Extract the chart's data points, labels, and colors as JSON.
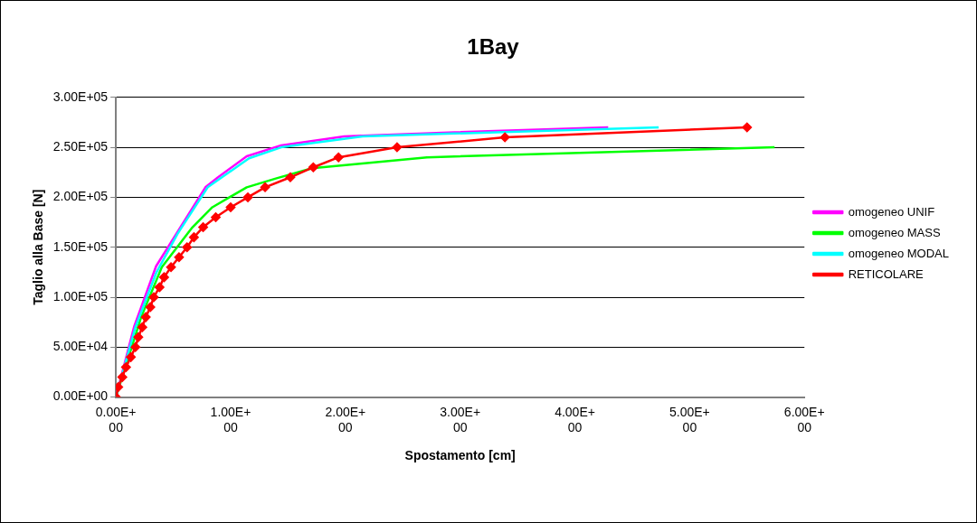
{
  "chart_data": {
    "type": "line",
    "title": "1Bay",
    "xlabel": "Spostamento [cm]",
    "ylabel": "Taglio alla Base [N]",
    "xlim": [
      0,
      6
    ],
    "ylim": [
      0,
      300000
    ],
    "xticks": [
      {
        "value": 0,
        "label": "0.00E+00"
      },
      {
        "value": 1,
        "label": "1.00E+00"
      },
      {
        "value": 2,
        "label": "2.00E+00"
      },
      {
        "value": 3,
        "label": "3.00E+00"
      },
      {
        "value": 4,
        "label": "4.00E+00"
      },
      {
        "value": 5,
        "label": "5.00E+00"
      },
      {
        "value": 6,
        "label": "6.00E+00"
      }
    ],
    "yticks": [
      {
        "value": 0,
        "label": "0.00E+00"
      },
      {
        "value": 50000,
        "label": "5.00E+04"
      },
      {
        "value": 100000,
        "label": "1.00E+05"
      },
      {
        "value": 150000,
        "label": "1.50E+05"
      },
      {
        "value": 200000,
        "label": "2.00E+05"
      },
      {
        "value": 250000,
        "label": "2.50E+05"
      },
      {
        "value": 300000,
        "label": "3.00E+05"
      }
    ],
    "grid": "y",
    "legend": "right",
    "line_style": "solid",
    "series": [
      {
        "name": "omogeneo UNIF",
        "color": "#ff00ff",
        "marker": "none",
        "x": [
          0,
          0.16,
          0.35,
          0.78,
          0.89,
          1.14,
          1.44,
          1.99,
          2.95,
          4.29
        ],
        "values": [
          0,
          71000,
          131000,
          210000,
          220000,
          241000,
          252000,
          261000,
          265000,
          270000
        ]
      },
      {
        "name": "omogeneo MASS",
        "color": "#00ff00",
        "marker": "none",
        "x": [
          0,
          0.22,
          0.4,
          0.66,
          0.84,
          1.14,
          1.4,
          1.71,
          2.71,
          5.74
        ],
        "values": [
          0,
          80000,
          130000,
          169000,
          190000,
          210000,
          219000,
          229000,
          240000,
          250000
        ]
      },
      {
        "name": "omogeneo MODAL",
        "color": "#00ffff",
        "marker": "none",
        "x": [
          0,
          0.17,
          0.35,
          0.54,
          0.8,
          1.16,
          1.44,
          2.15,
          4.73
        ],
        "values": [
          0,
          70000,
          124000,
          164000,
          210000,
          239000,
          250000,
          261000,
          270000
        ]
      },
      {
        "name": "RETICOLARE",
        "color": "#ff0000",
        "marker": "diamond",
        "x": [
          0,
          0.02,
          0.056,
          0.088,
          0.13,
          0.17,
          0.195,
          0.23,
          0.26,
          0.3,
          0.33,
          0.38,
          0.42,
          0.48,
          0.55,
          0.62,
          0.68,
          0.76,
          0.87,
          1.0,
          1.15,
          1.3,
          1.52,
          1.72,
          1.94,
          2.45,
          3.39,
          5.5
        ],
        "values": [
          0,
          10000,
          20000,
          30000,
          40000,
          50000,
          60000,
          70000,
          80000,
          90000,
          100000,
          110000,
          120000,
          130000,
          140000,
          150000,
          160000,
          170000,
          180000,
          190000,
          200000,
          210000,
          220000,
          230000,
          240000,
          250000,
          260000,
          270000
        ]
      }
    ]
  }
}
